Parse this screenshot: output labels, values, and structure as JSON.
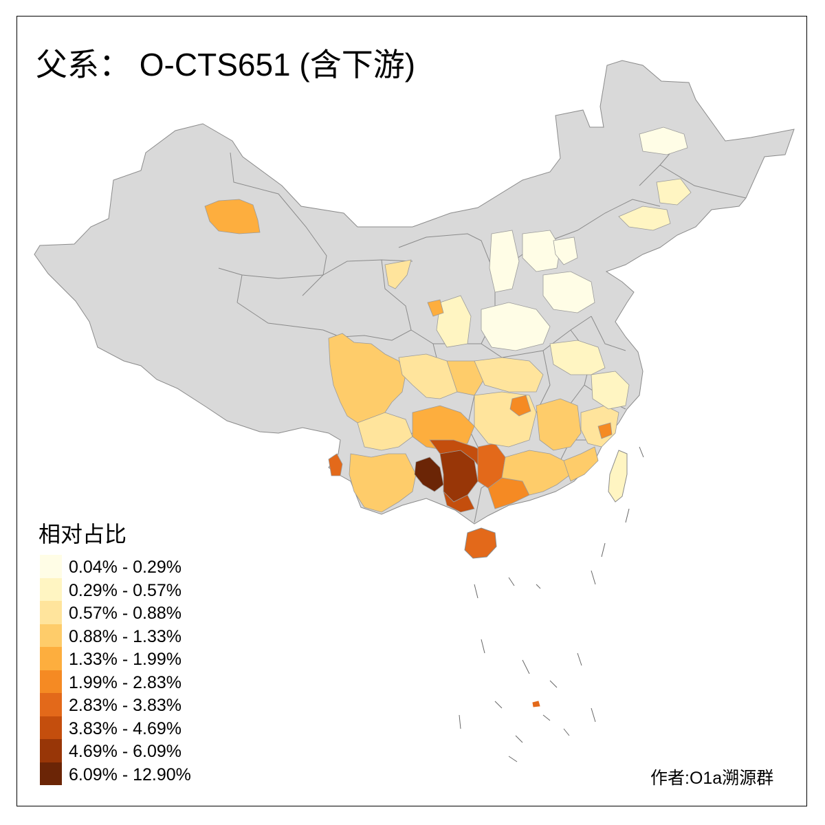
{
  "title": "父系： O-CTS651 (含下游)",
  "legend": {
    "title": "相对占比",
    "items": [
      {
        "label": "0.04% - 0.29%",
        "color": "#FFFDE6"
      },
      {
        "label": "0.29% - 0.57%",
        "color": "#FFF5C2"
      },
      {
        "label": "0.57% - 0.88%",
        "color": "#FFE49C"
      },
      {
        "label": "0.88% - 1.33%",
        "color": "#FECC6A"
      },
      {
        "label": "1.33% - 1.99%",
        "color": "#FDAE3E"
      },
      {
        "label": "1.99% - 2.83%",
        "color": "#F58A23"
      },
      {
        "label": "2.83% - 3.83%",
        "color": "#E3691A"
      },
      {
        "label": "3.83% - 4.69%",
        "color": "#C44E0D"
      },
      {
        "label": "4.69% - 6.09%",
        "color": "#983607"
      },
      {
        "label": "6.09% - 12.90%",
        "color": "#6B2506"
      }
    ]
  },
  "credit": "作者:O1a溯源群",
  "colors": {
    "no_data": "#D9D9D9",
    "border": "#8A8A8A",
    "frame": "#000000"
  }
}
